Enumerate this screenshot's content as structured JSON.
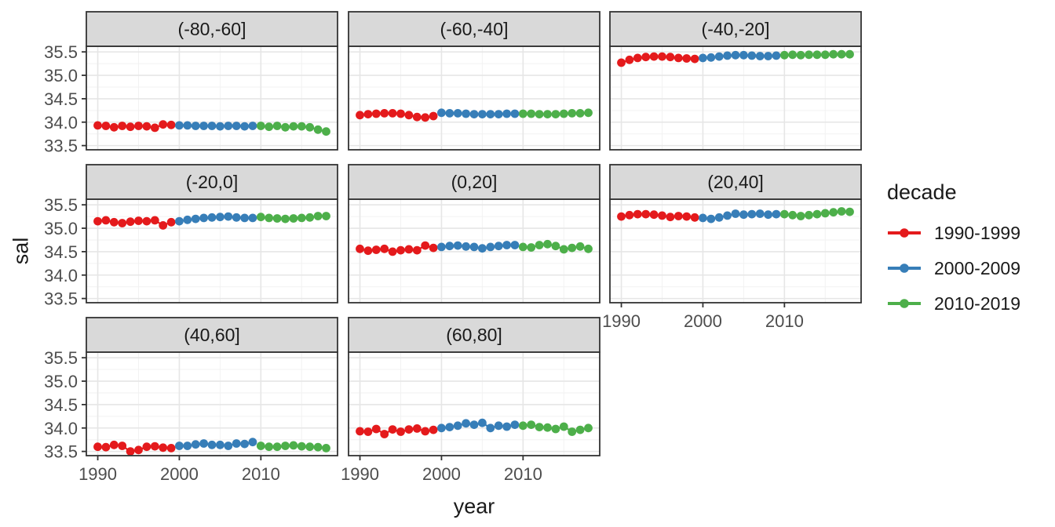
{
  "chart_data": {
    "type": "scatter",
    "title": "",
    "xlabel": "year",
    "ylabel": "sal",
    "x_start": 1990,
    "x_end": 2018,
    "x_ticks": [
      1990,
      2000,
      2010
    ],
    "x_minor_ticks": [
      1995,
      2005,
      2015
    ],
    "xlim": [
      1988.6,
      2019.4
    ],
    "y_ticks": [
      33.5,
      34.0,
      34.5,
      35.0,
      35.5
    ],
    "y_minor_ticks": [
      33.75,
      34.25,
      34.75,
      35.25
    ],
    "ylim": [
      33.41,
      35.62
    ],
    "grid": "on",
    "legend": {
      "title": "decade",
      "position": "right",
      "entries": [
        {
          "label": "1990-1999",
          "color": "#E41A1C",
          "start_year": 1990,
          "end_year": 1999
        },
        {
          "label": "2000-2009",
          "color": "#377EB8",
          "start_year": 2000,
          "end_year": 2009
        },
        {
          "label": "2010-2019",
          "color": "#4DAF4A",
          "start_year": 2010,
          "end_year": 2019
        }
      ]
    },
    "facets": [
      {
        "label": "(-80,-60]",
        "values": [
          33.93,
          33.92,
          33.89,
          33.92,
          33.9,
          33.92,
          33.91,
          33.88,
          33.95,
          33.94,
          33.93,
          33.93,
          33.92,
          33.92,
          33.92,
          33.91,
          33.92,
          33.92,
          33.91,
          33.92,
          33.92,
          33.9,
          33.92,
          33.89,
          33.91,
          33.91,
          33.89,
          33.84,
          33.8
        ]
      },
      {
        "label": "(-60,-40]",
        "values": [
          34.15,
          34.17,
          34.18,
          34.19,
          34.19,
          34.18,
          34.15,
          34.11,
          34.1,
          34.13,
          34.2,
          34.19,
          34.19,
          34.18,
          34.17,
          34.17,
          34.17,
          34.17,
          34.18,
          34.18,
          34.18,
          34.18,
          34.17,
          34.17,
          34.17,
          34.18,
          34.19,
          34.19,
          34.2
        ]
      },
      {
        "label": "(-40,-20]",
        "values": [
          35.27,
          35.33,
          35.37,
          35.39,
          35.4,
          35.4,
          35.39,
          35.37,
          35.36,
          35.35,
          35.37,
          35.38,
          35.4,
          35.42,
          35.43,
          35.43,
          35.42,
          35.41,
          35.41,
          35.42,
          35.43,
          35.44,
          35.43,
          35.44,
          35.44,
          35.44,
          35.45,
          35.45,
          35.45
        ]
      },
      {
        "label": "(-20,0]",
        "values": [
          35.15,
          35.17,
          35.13,
          35.11,
          35.14,
          35.16,
          35.15,
          35.17,
          35.06,
          35.13,
          35.15,
          35.18,
          35.2,
          35.22,
          35.23,
          35.24,
          35.25,
          35.23,
          35.22,
          35.22,
          35.24,
          35.22,
          35.21,
          35.2,
          35.21,
          35.22,
          35.23,
          35.26,
          35.26
        ]
      },
      {
        "label": "(0,20]",
        "values": [
          34.56,
          34.52,
          34.54,
          34.56,
          34.5,
          34.53,
          34.55,
          34.53,
          34.63,
          34.58,
          34.6,
          34.62,
          34.63,
          34.61,
          34.6,
          34.57,
          34.6,
          34.62,
          34.64,
          34.64,
          34.6,
          34.59,
          34.64,
          34.66,
          34.62,
          34.55,
          34.58,
          34.61,
          34.56
        ]
      },
      {
        "label": "(20,40]",
        "values": [
          35.25,
          35.28,
          35.3,
          35.3,
          35.29,
          35.27,
          35.24,
          35.26,
          35.25,
          35.23,
          35.22,
          35.2,
          35.23,
          35.27,
          35.31,
          35.29,
          35.3,
          35.31,
          35.29,
          35.3,
          35.3,
          35.28,
          35.26,
          35.28,
          35.3,
          35.32,
          35.34,
          35.36,
          35.35
        ]
      },
      {
        "label": "(40,60]",
        "values": [
          33.6,
          33.59,
          33.64,
          33.62,
          33.5,
          33.53,
          33.6,
          33.61,
          33.58,
          33.57,
          33.62,
          33.62,
          33.65,
          33.67,
          33.64,
          33.64,
          33.62,
          33.67,
          33.66,
          33.7,
          33.62,
          33.6,
          33.6,
          33.62,
          33.63,
          33.61,
          33.6,
          33.59,
          33.57
        ]
      },
      {
        "label": "(60,80]",
        "values": [
          33.93,
          33.92,
          33.98,
          33.87,
          33.97,
          33.92,
          33.97,
          33.99,
          33.93,
          33.96,
          34.0,
          34.02,
          34.05,
          34.1,
          34.07,
          34.11,
          34.0,
          34.05,
          34.03,
          34.07,
          34.05,
          34.07,
          34.02,
          34.01,
          33.98,
          34.03,
          33.92,
          33.96,
          34.0
        ]
      }
    ]
  },
  "colors": {
    "panel_background": "#FFFFFF",
    "strip_fill": "#D9D9D9",
    "panel_border": "#333333",
    "grid_major": "#E6E6E6",
    "grid_minor": "#F2F2F2",
    "tick_text": "#4D4D4D",
    "decade_red": "#E41A1C",
    "decade_blue": "#377EB8",
    "decade_green": "#4DAF4A"
  }
}
